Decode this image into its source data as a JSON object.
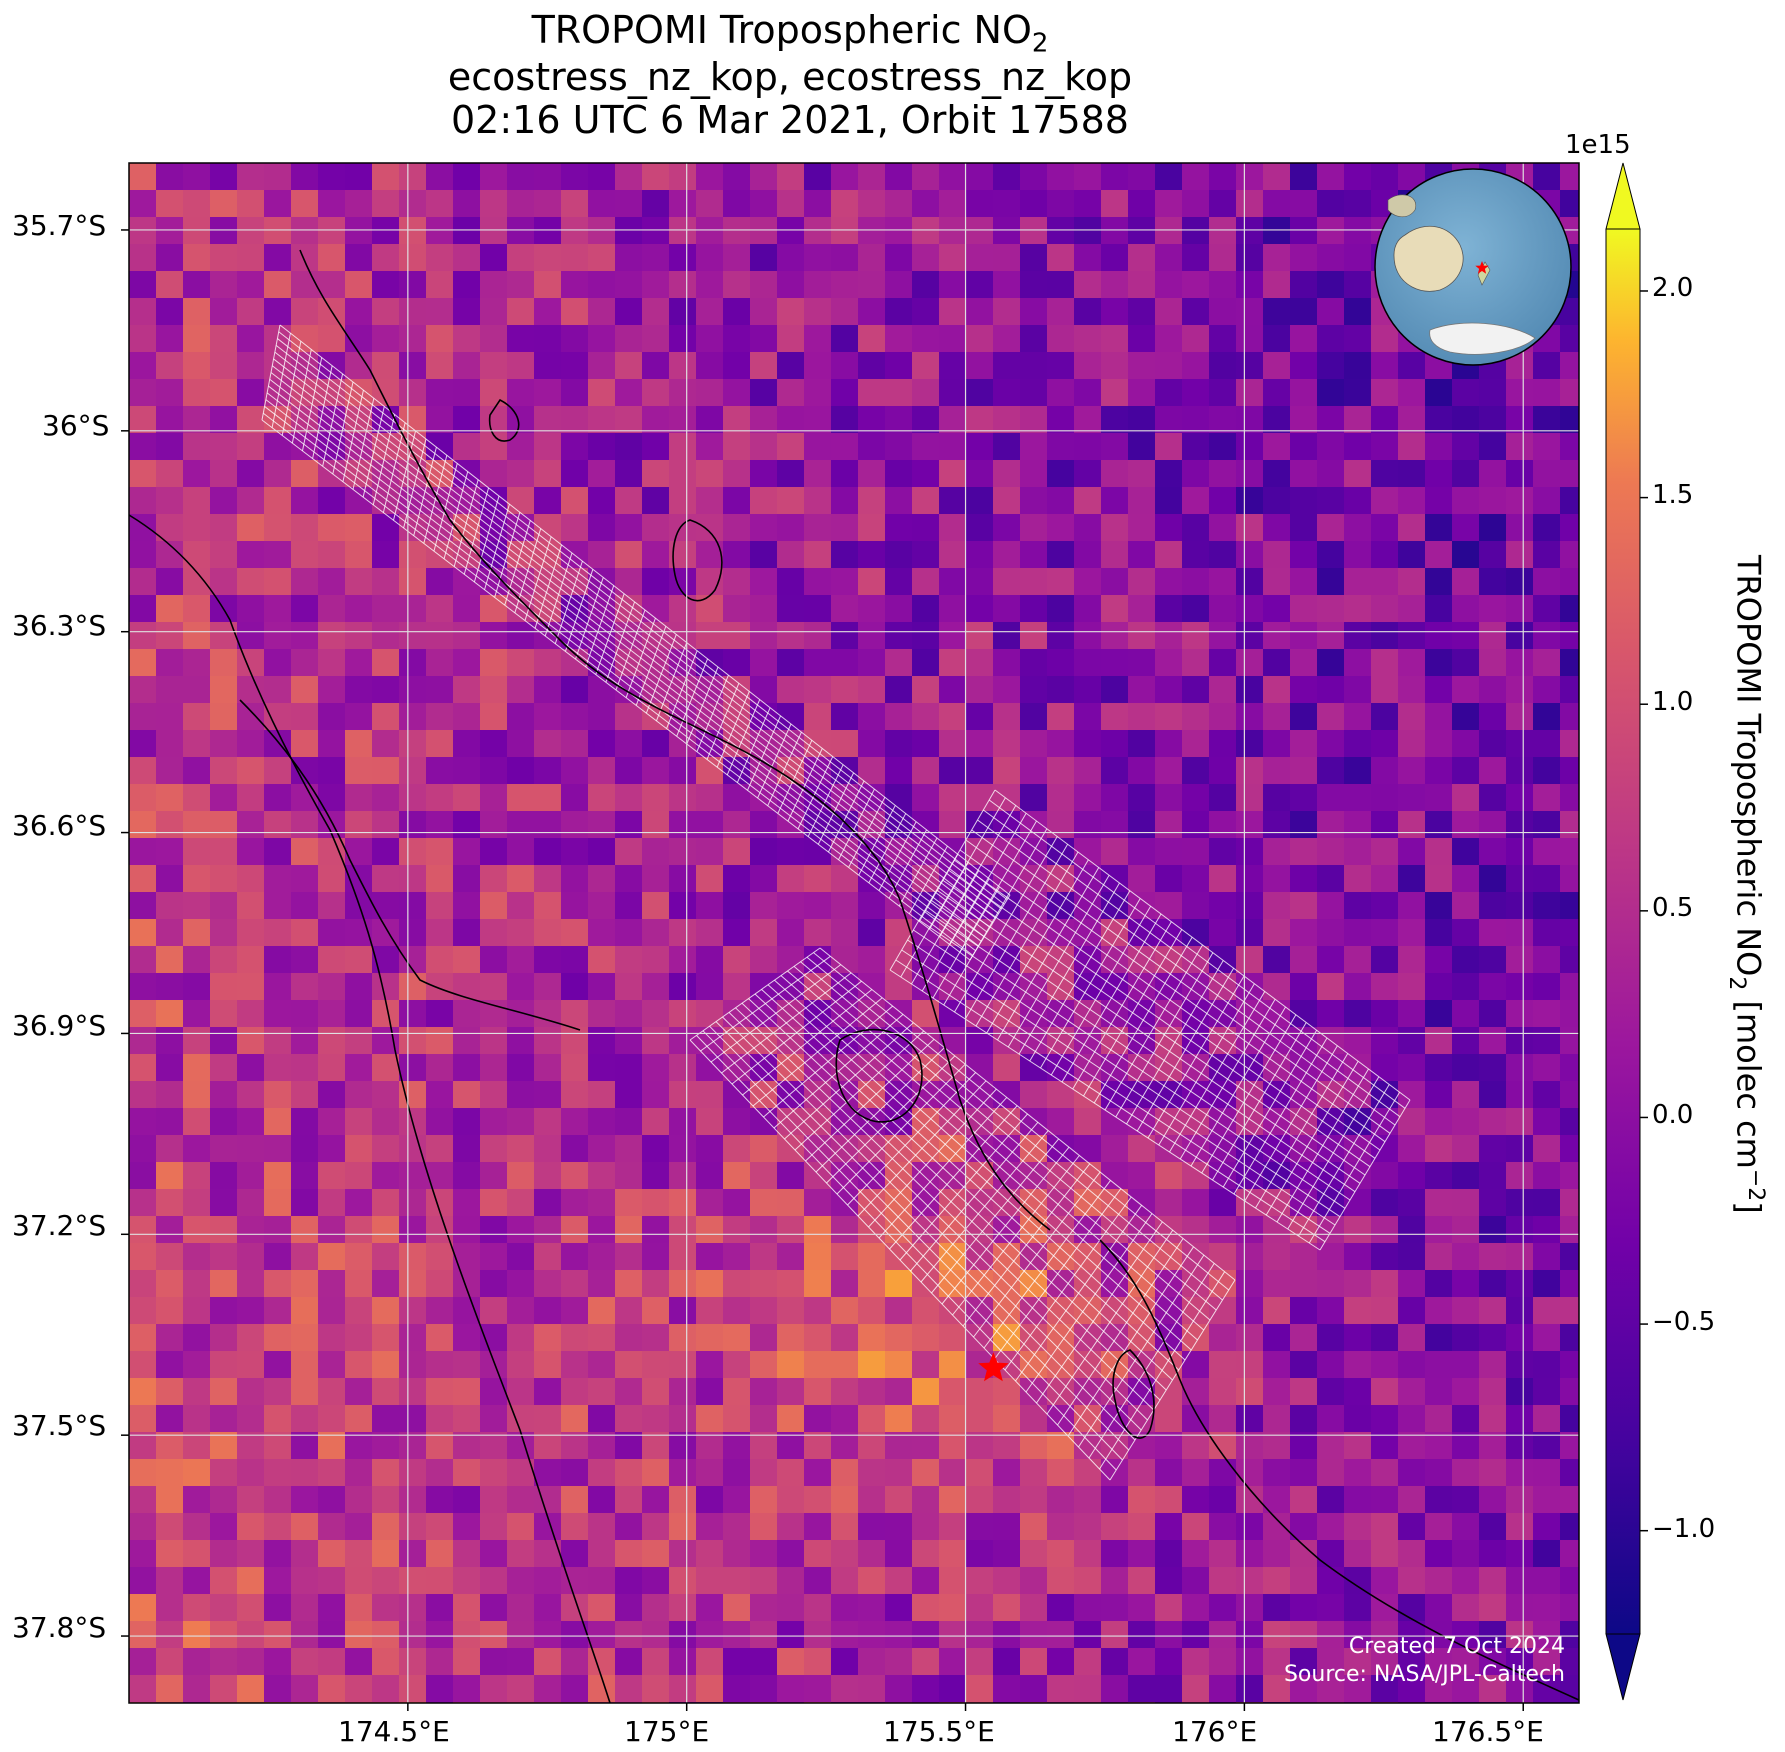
{
  "title": {
    "line1": "TROPOMI Tropospheric NO",
    "line1_sub": "2",
    "line2": "ecostress_nz_kop, ecostress_nz_kop",
    "line3": "02:16 UTC 6 Mar 2021, Orbit 17588"
  },
  "axes": {
    "lat_ticks": [
      "35.7°S",
      "36°S",
      "36.3°S",
      "36.6°S",
      "36.9°S",
      "37.2°S",
      "37.5°S",
      "37.8°S"
    ],
    "lon_ticks": [
      "174.5°E",
      "175°E",
      "175.5°E",
      "176°E",
      "176.5°E"
    ],
    "lat_range": [
      -37.9,
      -35.6
    ],
    "lon_range": [
      174.0,
      176.6
    ],
    "grid": true
  },
  "colorbar": {
    "label_main": "TROPOMI Tropospheric NO",
    "label_sub": "2",
    "label_units": " [molec cm",
    "label_exp": "−2",
    "label_close": "]",
    "multiplier": "1e15",
    "ticks": [
      "2.0",
      "1.5",
      "1.0",
      "0.5",
      "0.0",
      "−0.5",
      "−1.0"
    ],
    "tick_values": [
      2.0,
      1.5,
      1.0,
      0.5,
      0.0,
      -0.5,
      -1.0
    ],
    "range": [
      -1.25,
      2.15
    ],
    "colormap": "plasma",
    "extend": "both"
  },
  "marker": {
    "lon": 175.55,
    "lat": -37.4,
    "color": "#ff0000",
    "icon": "star-icon"
  },
  "inset": {
    "type": "globe",
    "icon": "globe-icon",
    "marker_color": "#ff0000"
  },
  "credit": {
    "line1": "Created 7 Oct 2024",
    "line2": "Source: NASA/JPL-Caltech"
  }
}
